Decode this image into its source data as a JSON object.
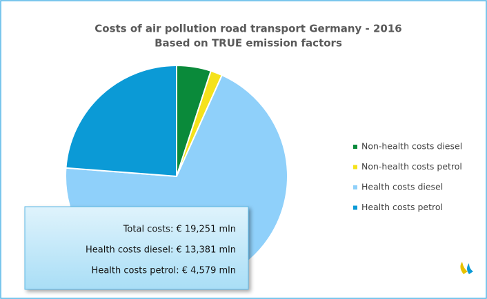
{
  "chart_data": {
    "type": "pie",
    "title": "Costs of air pollution road transport Germany - 2016",
    "subtitle": "Based on TRUE emission factors",
    "categories": [
      "Non-health costs diesel",
      "Non-health costs petrol",
      "Health costs diesel",
      "Health costs petrol"
    ],
    "values": [
      963,
      328,
      13381,
      4579
    ],
    "colors": [
      "#0a8a3a",
      "#f5e21b",
      "#8fd0fa",
      "#0b9ad6"
    ],
    "legend": "right",
    "annotations": [
      "Total costs: € 19,251 mln",
      "Health costs diesel: € 13,381 mln",
      "Health costs petrol: € 4,579 mln"
    ]
  }
}
